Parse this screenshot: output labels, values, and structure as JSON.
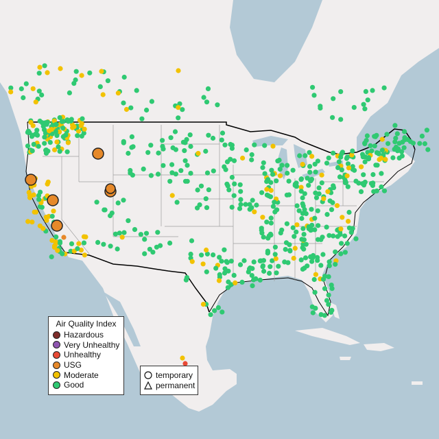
{
  "legend": {
    "title": "Air Quality Index",
    "categories": [
      {
        "label": "Hazardous",
        "color": "#7e2d2a"
      },
      {
        "label": "Very Unhealthy",
        "color": "#8e55b0"
      },
      {
        "label": "Unhealthy",
        "color": "#e84a36"
      },
      {
        "label": "USG",
        "color": "#e6892a"
      },
      {
        "label": "Moderate",
        "color": "#f2c200"
      },
      {
        "label": "Good",
        "color": "#2fc972"
      }
    ]
  },
  "monitor_types": {
    "temporary_label": "temporary",
    "permanent_label": "permanent"
  },
  "colors": {
    "water": "#b3c9d6",
    "land": "#f1eeee",
    "terrain": "#e6e2dc",
    "borders": "#000000",
    "state_lines": "#9d9d9d"
  }
}
